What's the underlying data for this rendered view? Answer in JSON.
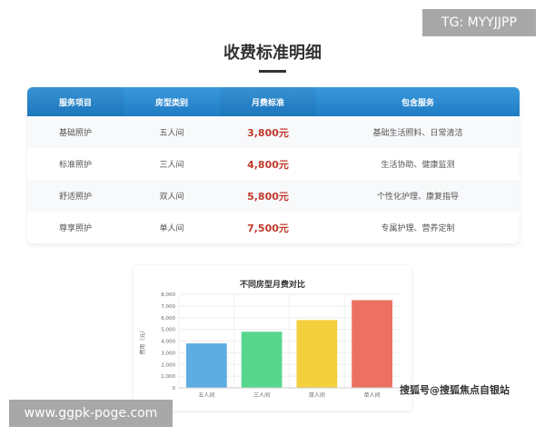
{
  "title": "收费标准明细",
  "table": {
    "headers": [
      "服务项目",
      "房型类别",
      "月费标准",
      "包含服务"
    ],
    "rows": [
      [
        "基础照护",
        "五人间",
        "3,800元",
        "基础生活照料、日常清洁"
      ],
      [
        "标准照护",
        "三人间",
        "4,800元",
        "生活协助、健康监测"
      ],
      [
        "舒适照护",
        "双人间",
        "5,800元",
        "个性化护理、康复指导"
      ],
      [
        "尊享照护",
        "单人间",
        "7,500元",
        "专属护理、营养定制"
      ]
    ]
  },
  "chart_data": {
    "type": "bar",
    "title": "不同房型月费对比",
    "ylabel": "费用（元）",
    "categories": [
      "五人间",
      "三人间",
      "双人间",
      "单人间"
    ],
    "values": [
      3800,
      4800,
      5800,
      7500
    ],
    "colors": [
      "#5dade2",
      "#58d68d",
      "#f4d03f",
      "#ec7063"
    ],
    "ylim": [
      0,
      8000
    ],
    "yticks": [
      "0",
      "1,000",
      "2,000",
      "3,000",
      "4,000",
      "5,000",
      "6,000",
      "7,000",
      "8,000"
    ],
    "grid": true
  },
  "watermarks": {
    "tg": "TG: MYYJJPP",
    "site": "www.ggpk-poge.com",
    "sohu": "搜狐号@搜狐焦点自银站"
  }
}
